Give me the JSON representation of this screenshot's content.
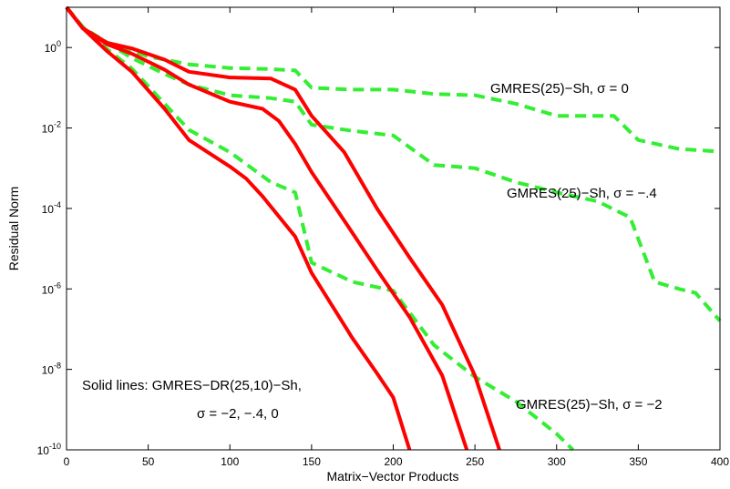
{
  "chart_data": {
    "type": "line",
    "xlabel": "Matrix−Vector Products",
    "ylabel": "Residual Norm",
    "xlim": [
      0,
      400
    ],
    "ylim_log10": [
      -10,
      1
    ],
    "yscale": "log",
    "xticks": [
      "0",
      "50",
      "100",
      "150",
      "200",
      "250",
      "300",
      "350",
      "400"
    ],
    "yticks": [
      {
        "base": "10",
        "exp": "0"
      },
      {
        "base": "10",
        "exp": "-2"
      },
      {
        "base": "10",
        "exp": "-4"
      },
      {
        "base": "10",
        "exp": "-6"
      },
      {
        "base": "10",
        "exp": "-8"
      },
      {
        "base": "10",
        "exp": "-10"
      }
    ],
    "grid": false,
    "colors": {
      "dr": "#ff0000",
      "restart": "#33ee33"
    },
    "series": [
      {
        "group": "gmres-sh",
        "style": "dashed",
        "color": "#33ee33",
        "points": [
          [
            0,
            10
          ],
          [
            10,
            3.2
          ],
          [
            20,
            1.5
          ],
          [
            35,
            1.0
          ],
          [
            50,
            0.6
          ],
          [
            75,
            0.38
          ],
          [
            100,
            0.31
          ],
          [
            125,
            0.29
          ],
          [
            140,
            0.27
          ],
          [
            150,
            0.1
          ],
          [
            175,
            0.09
          ],
          [
            200,
            0.09
          ],
          [
            225,
            0.07
          ],
          [
            250,
            0.065
          ],
          [
            275,
            0.04
          ],
          [
            300,
            0.02
          ],
          [
            325,
            0.02
          ],
          [
            335,
            0.02
          ],
          [
            350,
            0.005
          ],
          [
            375,
            0.003
          ],
          [
            400,
            0.0026
          ]
        ]
      },
      {
        "group": "gmres-sh",
        "style": "dashed",
        "color": "#33ee33",
        "points": [
          [
            0,
            10
          ],
          [
            10,
            3.2
          ],
          [
            25,
            1.3
          ],
          [
            40,
            0.55
          ],
          [
            60,
            0.22
          ],
          [
            75,
            0.12
          ],
          [
            100,
            0.065
          ],
          [
            125,
            0.055
          ],
          [
            140,
            0.045
          ],
          [
            150,
            0.012
          ],
          [
            175,
            0.0085
          ],
          [
            200,
            0.0065
          ],
          [
            225,
            0.0012
          ],
          [
            250,
            0.001
          ],
          [
            275,
            0.00045
          ],
          [
            300,
            0.00025
          ],
          [
            325,
            0.00015
          ],
          [
            345,
            6e-05
          ],
          [
            360,
            1.5e-06
          ],
          [
            375,
            1e-06
          ],
          [
            385,
            8e-07
          ],
          [
            400,
            1.6e-07
          ]
        ]
      },
      {
        "group": "gmres-sh",
        "style": "dashed",
        "color": "#33ee33",
        "points": [
          [
            0,
            10
          ],
          [
            10,
            3.2
          ],
          [
            25,
            0.9
          ],
          [
            40,
            0.3
          ],
          [
            60,
            0.04
          ],
          [
            75,
            0.009
          ],
          [
            100,
            0.0025
          ],
          [
            125,
            0.00045
          ],
          [
            140,
            0.00025
          ],
          [
            150,
            4.5e-06
          ],
          [
            175,
            1.5e-06
          ],
          [
            200,
            9e-07
          ],
          [
            225,
            4e-08
          ],
          [
            250,
            6.5e-09
          ],
          [
            275,
            1.6e-09
          ],
          [
            300,
            2.5e-10
          ],
          [
            310,
            1e-10
          ]
        ]
      },
      {
        "group": "gmres-dr-sh",
        "style": "solid",
        "color": "#ff0000",
        "points": [
          [
            0,
            10
          ],
          [
            10,
            3.0
          ],
          [
            25,
            0.8
          ],
          [
            40,
            0.25
          ],
          [
            60,
            0.03
          ],
          [
            75,
            0.005
          ],
          [
            100,
            0.0011
          ],
          [
            110,
            0.00055
          ],
          [
            120,
            0.0002
          ],
          [
            140,
            2e-05
          ],
          [
            150,
            2.5e-06
          ],
          [
            175,
            6e-08
          ],
          [
            190,
            8e-09
          ],
          [
            200,
            2e-09
          ],
          [
            210,
            1e-10
          ]
        ]
      },
      {
        "group": "gmres-dr-sh",
        "style": "solid",
        "color": "#ff0000",
        "points": [
          [
            0,
            10
          ],
          [
            10,
            3.0
          ],
          [
            25,
            1.2
          ],
          [
            40,
            0.7
          ],
          [
            60,
            0.28
          ],
          [
            75,
            0.12
          ],
          [
            100,
            0.045
          ],
          [
            120,
            0.03
          ],
          [
            130,
            0.015
          ],
          [
            140,
            0.004
          ],
          [
            150,
            0.0008
          ],
          [
            170,
            5e-05
          ],
          [
            190,
            3e-06
          ],
          [
            210,
            2e-07
          ],
          [
            230,
            7e-09
          ],
          [
            245,
            1e-10
          ]
        ]
      },
      {
        "group": "gmres-dr-sh",
        "style": "solid",
        "color": "#ff0000",
        "points": [
          [
            0,
            10
          ],
          [
            10,
            3.0
          ],
          [
            25,
            1.3
          ],
          [
            40,
            0.95
          ],
          [
            60,
            0.5
          ],
          [
            75,
            0.25
          ],
          [
            100,
            0.18
          ],
          [
            125,
            0.17
          ],
          [
            140,
            0.09
          ],
          [
            150,
            0.02
          ],
          [
            170,
            0.0025
          ],
          [
            190,
            0.0001
          ],
          [
            210,
            6e-06
          ],
          [
            230,
            4e-07
          ],
          [
            250,
            7e-09
          ],
          [
            265,
            1e-10
          ]
        ]
      }
    ],
    "annotations": {
      "a1": "GMRES(25)−Sh, σ = 0",
      "a2": "GMRES(25)−Sh, σ = −.4",
      "a3": "GMRES(25)−Sh, σ = −2",
      "a4": "Solid lines: GMRES−DR(25,10)−Sh,",
      "a5": "σ = −2, −.4, 0"
    }
  }
}
